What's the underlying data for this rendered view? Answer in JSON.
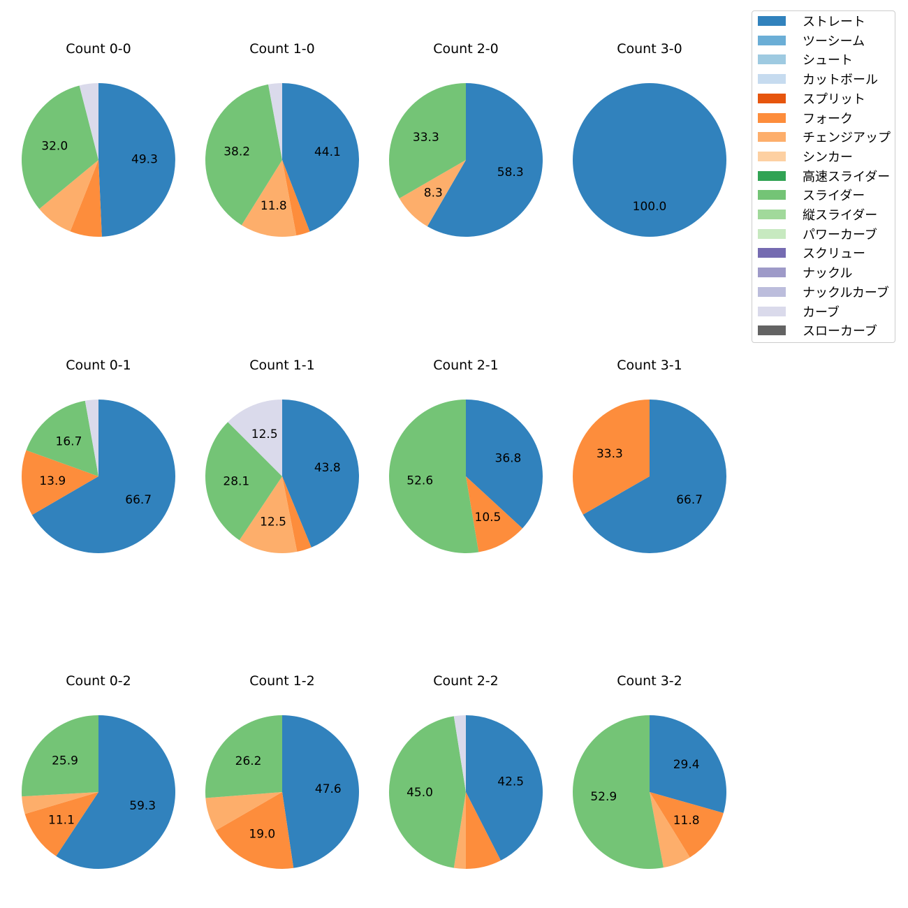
{
  "chart_data": {
    "type": "pie",
    "title_prefix": "Count",
    "legend_placement": "top-right",
    "pitch_types": [
      {
        "name": "ストレート",
        "color": "#3182bd"
      },
      {
        "name": "ツーシーム",
        "color": "#6baed6"
      },
      {
        "name": "シュート",
        "color": "#9ecae1"
      },
      {
        "name": "カットボール",
        "color": "#c6dbef"
      },
      {
        "name": "スプリット",
        "color": "#e6550d"
      },
      {
        "name": "フォーク",
        "color": "#fd8d3c"
      },
      {
        "name": "チェンジアップ",
        "color": "#fdae6b"
      },
      {
        "name": "シンカー",
        "color": "#fdd0a2"
      },
      {
        "name": "高速スライダー",
        "color": "#31a354"
      },
      {
        "name": "スライダー",
        "color": "#74c476"
      },
      {
        "name": "縦スライダー",
        "color": "#a1d99b"
      },
      {
        "name": "パワーカーブ",
        "color": "#c7e9c0"
      },
      {
        "name": "スクリュー",
        "color": "#756bb1"
      },
      {
        "name": "ナックル",
        "color": "#9e9ac8"
      },
      {
        "name": "ナックルカーブ",
        "color": "#bcbddc"
      },
      {
        "name": "カーブ",
        "color": "#dadaeb"
      },
      {
        "name": "スローカーブ",
        "color": "#636363"
      }
    ],
    "pies": [
      {
        "title": "Count 0-0",
        "slices": [
          {
            "pitch": "ストレート",
            "value": 49.3,
            "label": "49.3"
          },
          {
            "pitch": "フォーク",
            "value": 6.7
          },
          {
            "pitch": "チェンジアップ",
            "value": 8.0
          },
          {
            "pitch": "スライダー",
            "value": 32.0,
            "label": "32.0"
          },
          {
            "pitch": "カーブ",
            "value": 4.0
          }
        ]
      },
      {
        "title": "Count 1-0",
        "slices": [
          {
            "pitch": "ストレート",
            "value": 44.1,
            "label": "44.1"
          },
          {
            "pitch": "フォーク",
            "value": 2.9
          },
          {
            "pitch": "チェンジアップ",
            "value": 11.8,
            "label": "11.8"
          },
          {
            "pitch": "スライダー",
            "value": 38.2,
            "label": "38.2"
          },
          {
            "pitch": "カーブ",
            "value": 2.9
          }
        ]
      },
      {
        "title": "Count 2-0",
        "slices": [
          {
            "pitch": "ストレート",
            "value": 58.3,
            "label": "58.3"
          },
          {
            "pitch": "チェンジアップ",
            "value": 8.3,
            "label": "8.3"
          },
          {
            "pitch": "スライダー",
            "value": 33.3,
            "label": "33.3"
          }
        ]
      },
      {
        "title": "Count 3-0",
        "slices": [
          {
            "pitch": "ストレート",
            "value": 100.0,
            "label": "100.0"
          }
        ]
      },
      {
        "title": "Count 0-1",
        "slices": [
          {
            "pitch": "ストレート",
            "value": 66.7,
            "label": "66.7"
          },
          {
            "pitch": "フォーク",
            "value": 13.9,
            "label": "13.9"
          },
          {
            "pitch": "スライダー",
            "value": 16.7,
            "label": "16.7"
          },
          {
            "pitch": "カーブ",
            "value": 2.8
          }
        ]
      },
      {
        "title": "Count 1-1",
        "slices": [
          {
            "pitch": "ストレート",
            "value": 43.8,
            "label": "43.8"
          },
          {
            "pitch": "フォーク",
            "value": 3.1
          },
          {
            "pitch": "チェンジアップ",
            "value": 12.5,
            "label": "12.5"
          },
          {
            "pitch": "スライダー",
            "value": 28.1,
            "label": "28.1"
          },
          {
            "pitch": "カーブ",
            "value": 12.5,
            "label": "12.5"
          }
        ]
      },
      {
        "title": "Count 2-1",
        "slices": [
          {
            "pitch": "ストレート",
            "value": 36.8,
            "label": "36.8"
          },
          {
            "pitch": "フォーク",
            "value": 10.5,
            "label": "10.5"
          },
          {
            "pitch": "スライダー",
            "value": 52.6,
            "label": "52.6"
          }
        ]
      },
      {
        "title": "Count 3-1",
        "slices": [
          {
            "pitch": "ストレート",
            "value": 66.7,
            "label": "66.7"
          },
          {
            "pitch": "フォーク",
            "value": 33.3,
            "label": "33.3"
          }
        ]
      },
      {
        "title": "Count 0-2",
        "slices": [
          {
            "pitch": "ストレート",
            "value": 59.3,
            "label": "59.3"
          },
          {
            "pitch": "フォーク",
            "value": 11.1,
            "label": "11.1"
          },
          {
            "pitch": "チェンジアップ",
            "value": 3.7
          },
          {
            "pitch": "スライダー",
            "value": 25.9,
            "label": "25.9"
          }
        ]
      },
      {
        "title": "Count 1-2",
        "slices": [
          {
            "pitch": "ストレート",
            "value": 47.6,
            "label": "47.6"
          },
          {
            "pitch": "フォーク",
            "value": 19.0,
            "label": "19.0"
          },
          {
            "pitch": "チェンジアップ",
            "value": 7.1
          },
          {
            "pitch": "スライダー",
            "value": 26.2,
            "label": "26.2"
          }
        ]
      },
      {
        "title": "Count 2-2",
        "slices": [
          {
            "pitch": "ストレート",
            "value": 42.5,
            "label": "42.5"
          },
          {
            "pitch": "フォーク",
            "value": 7.5
          },
          {
            "pitch": "チェンジアップ",
            "value": 2.5
          },
          {
            "pitch": "スライダー",
            "value": 45.0,
            "label": "45.0"
          },
          {
            "pitch": "カーブ",
            "value": 2.5
          }
        ]
      },
      {
        "title": "Count 3-2",
        "slices": [
          {
            "pitch": "ストレート",
            "value": 29.4,
            "label": "29.4"
          },
          {
            "pitch": "フォーク",
            "value": 11.8,
            "label": "11.8"
          },
          {
            "pitch": "チェンジアップ",
            "value": 5.9
          },
          {
            "pitch": "スライダー",
            "value": 52.9,
            "label": "52.9"
          }
        ]
      }
    ]
  }
}
